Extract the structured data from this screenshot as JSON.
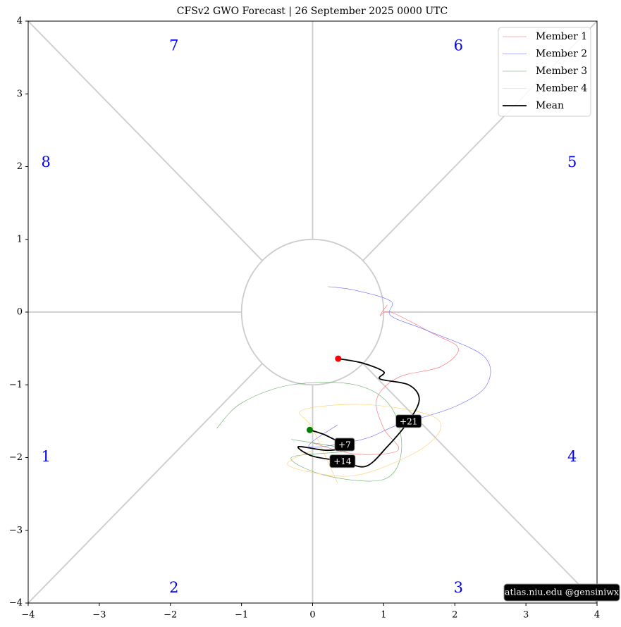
{
  "chart_data": {
    "type": "line",
    "title": "CFSv2 GWO Forecast  |  26  September  2025 0000 UTC",
    "xlim": [
      -4,
      4
    ],
    "ylim": [
      -4,
      4
    ],
    "xticks": [
      {
        "value": -4,
        "label": "−4"
      },
      {
        "value": -3,
        "label": "−3"
      },
      {
        "value": -2,
        "label": "−2"
      },
      {
        "value": -1,
        "label": "−1"
      },
      0,
      1,
      2,
      3,
      4
    ],
    "yticks": [
      {
        "value": -4,
        "label": "−4"
      },
      {
        "value": -3,
        "label": "−3"
      },
      {
        "value": -2,
        "label": "−2"
      },
      {
        "value": -1,
        "label": "−1"
      },
      0,
      1,
      2,
      3,
      4
    ],
    "legend": "upper right",
    "series": [
      {
        "name": "Member 1",
        "color": "#ff6666",
        "linewidth": 0.6,
        "x": [
          0.0,
          0.6,
          1.2,
          1.0,
          0.9,
          1.2,
          1.8,
          2.05,
          1.7,
          1.1,
          0.95,
          1.05
        ],
        "y": [
          -1.8,
          -1.95,
          -1.9,
          -1.6,
          -1.2,
          -0.9,
          -0.75,
          -0.5,
          -0.3,
          0.0,
          -0.05,
          0.1
        ]
      },
      {
        "name": "Member 2",
        "color": "#6666ff",
        "linewidth": 0.6,
        "x": [
          0.35,
          -0.05,
          0.7,
          1.2,
          2.0,
          2.45,
          2.4,
          1.6,
          1.1,
          1.1,
          0.6,
          0.22
        ],
        "y": [
          -1.55,
          -1.85,
          -1.75,
          -1.55,
          -1.3,
          -1.0,
          -0.6,
          -0.25,
          -0.05,
          0.15,
          0.3,
          0.35
        ]
      },
      {
        "name": "Member 3",
        "color": "#66aa66",
        "linewidth": 0.6,
        "x": [
          -0.3,
          0.5,
          -0.3,
          0.2,
          1.0,
          1.25,
          1.1,
          0.6,
          -0.3,
          -1.0,
          -1.35
        ],
        "y": [
          -1.75,
          -1.9,
          -2.0,
          -2.25,
          -2.3,
          -1.9,
          -1.3,
          -1.0,
          -1.0,
          -1.25,
          -1.6
        ]
      },
      {
        "name": "Member 4",
        "color": "#ffcc66",
        "linewidth": 0.6,
        "x": [
          0.0,
          -0.35,
          0.3,
          0.8,
          1.5,
          1.8,
          1.6,
          0.7,
          -0.15,
          0.0,
          0.35
        ],
        "y": [
          -1.9,
          -2.1,
          -2.25,
          -2.2,
          -1.9,
          -1.6,
          -1.4,
          -1.27,
          -1.35,
          -1.6,
          -2.35
        ]
      },
      {
        "name": "Mean",
        "color": "#000000",
        "linewidth": 1.8,
        "x": [
          -0.04,
          0.2,
          0.45,
          0.2,
          -0.2,
          0.0,
          0.42,
          0.75,
          1.05,
          1.35,
          1.5,
          1.35,
          0.95,
          1.0,
          0.7,
          0.36
        ],
        "y": [
          -1.62,
          -1.7,
          -1.85,
          -1.9,
          -1.85,
          -1.98,
          -2.05,
          -2.12,
          -1.85,
          -1.5,
          -1.2,
          -1.0,
          -0.92,
          -0.82,
          -0.7,
          -0.64
        ]
      }
    ],
    "start_color": "#008000",
    "end_color": "#ff0000",
    "annotations": [
      {
        "text": "+7",
        "x": 0.45,
        "y": -1.82
      },
      {
        "text": "+14",
        "x": 0.42,
        "y": -2.05
      },
      {
        "text": "+21",
        "x": 1.35,
        "y": -1.5
      }
    ],
    "phase_labels": [
      "1",
      "2",
      "3",
      "4",
      "5",
      "6",
      "7",
      "8"
    ],
    "watermark": "atlas.niu.edu  @gensiniwx"
  }
}
